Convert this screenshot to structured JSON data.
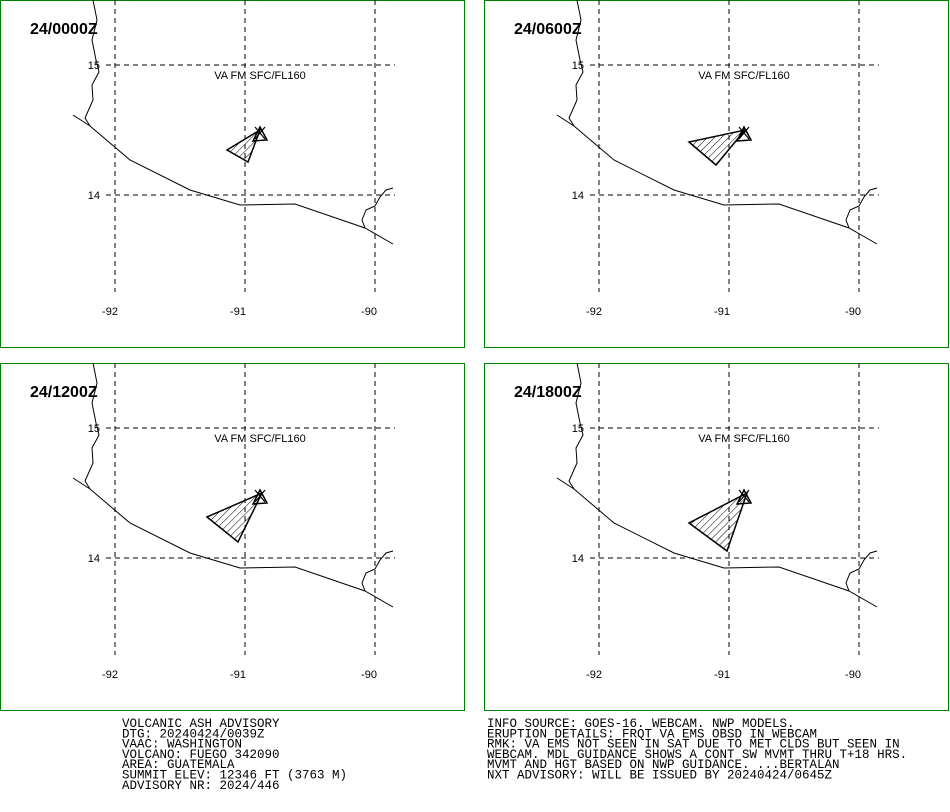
{
  "grid": {
    "lat_labels": [
      "15",
      "14"
    ],
    "lon_labels": [
      "-92",
      "-91",
      "-90"
    ]
  },
  "panels": [
    {
      "time": "24/0000Z",
      "layer": "VA FM SFC/FL160"
    },
    {
      "time": "24/0600Z",
      "layer": "VA FM SFC/FL160"
    },
    {
      "time": "24/1200Z",
      "layer": "VA FM SFC/FL160"
    },
    {
      "time": "24/1800Z",
      "layer": "VA FM SFC/FL160"
    }
  ],
  "advisory_left": [
    "VOLCANIC ASH ADVISORY",
    "DTG: 20240424/0039Z",
    "VAAC: WASHINGTON",
    "VOLCANO: FUEGO 342090",
    "AREA: GUATEMALA",
    "SUMMIT ELEV: 12346 FT (3763 M)",
    "ADVISORY NR: 2024/446"
  ],
  "advisory_right": [
    "INFO SOURCE: GOES-16. WEBCAM. NWP MODELS.",
    "ERUPTION DETAILS: FRQT VA EMS OBSD IN WEBCAM",
    "RMK: VA EMS NOT SEEN IN SAT DUE TO MET CLDS BUT SEEN IN",
    "WEBCAM. MDL GUIDANCE SHOWS A CONT SW MVMT THRU T+18 HRS.",
    "MVMT AND HGT BASED ON NWP GUIDANCE. ...BERTALAN",
    "NXT ADVISORY: WILL BE ISSUED BY 20240424/0645Z"
  ]
}
